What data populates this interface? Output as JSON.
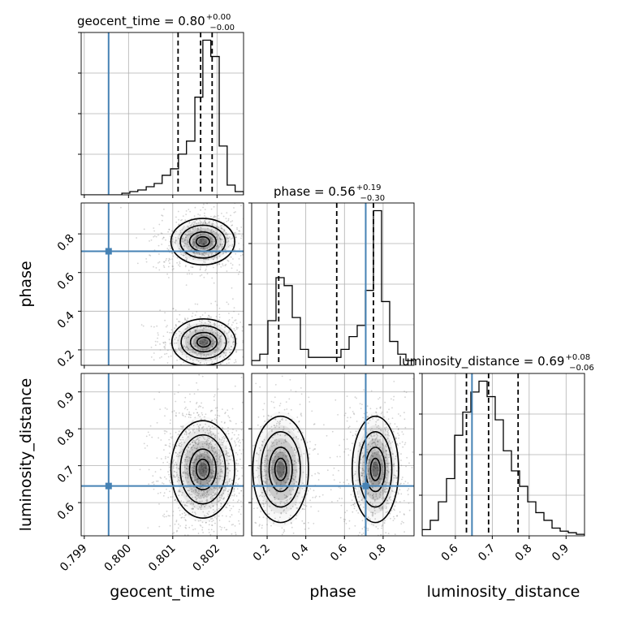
{
  "chart_data": {
    "type": "corner",
    "parameters": [
      "geocent_time",
      "phase",
      "luminosity_distance"
    ],
    "truths": {
      "geocent_time": 0.79955,
      "phase": 0.71,
      "luminosity_distance": 0.645
    },
    "colors": {
      "truth": "#4682b4",
      "hist": "#000000",
      "grid": "#b0b0b0",
      "points": "#808080"
    },
    "titles": {
      "geocent_time": {
        "name": "geocent_time",
        "value": "0.80",
        "plus": "+0.00",
        "minus": "−0.00"
      },
      "phase": {
        "name": "phase",
        "value": "0.56",
        "plus": "+0.19",
        "minus": "−0.30"
      },
      "luminosity_distance": {
        "name": "luminosity_distance",
        "value": "0.69",
        "plus": "+0.08",
        "minus": "−0.06"
      }
    },
    "axes": {
      "geocent_time": {
        "lim": [
          0.79893,
          0.8026
        ],
        "ticks": [
          0.799,
          0.8,
          0.801,
          0.802
        ],
        "tick_labels": [
          "0.799",
          "0.800",
          "0.801",
          "0.802"
        ],
        "label": "geocent_time"
      },
      "phase": {
        "lim": [
          0.12,
          0.96
        ],
        "ticks": [
          0.2,
          0.4,
          0.6,
          0.8
        ],
        "tick_labels": [
          "0.2",
          "0.4",
          "0.6",
          "0.8"
        ],
        "label": "phase"
      },
      "luminosity_distance": {
        "lim": [
          0.51,
          0.95
        ],
        "ticks": [
          0.6,
          0.7,
          0.8,
          0.9
        ],
        "tick_labels": [
          "0.6",
          "0.7",
          "0.8",
          "0.9"
        ],
        "label": "luminosity_distance"
      }
    },
    "histograms": {
      "geocent_time": {
        "edges": [
          0.79893,
          0.79911,
          0.7993,
          0.79948,
          0.79966,
          0.79985,
          0.80003,
          0.80021,
          0.8004,
          0.80058,
          0.80076,
          0.80095,
          0.80113,
          0.80131,
          0.8015,
          0.80168,
          0.80186,
          0.80205,
          0.80223,
          0.80241,
          0.8026
        ],
        "counts": [
          0,
          0,
          0,
          0,
          0,
          1,
          2,
          3,
          5,
          7,
          12,
          16,
          25,
          33,
          60,
          95,
          85,
          30,
          6,
          2
        ],
        "quantiles": [
          0.80112,
          0.80163,
          0.80189
        ],
        "ymax": 95
      },
      "phase": {
        "edges": [
          0.12,
          0.162,
          0.204,
          0.246,
          0.288,
          0.33,
          0.372,
          0.414,
          0.456,
          0.498,
          0.54,
          0.582,
          0.624,
          0.666,
          0.708,
          0.75,
          0.792,
          0.834,
          0.876,
          0.918,
          0.96
        ],
        "counts": [
          3,
          7,
          28,
          55,
          50,
          30,
          10,
          5,
          5,
          5,
          5,
          10,
          18,
          25,
          47,
          97,
          40,
          15,
          7,
          3
        ],
        "quantiles": [
          0.26,
          0.56,
          0.75
        ],
        "ymax": 97
      },
      "luminosity_distance": {
        "edges": [
          0.51,
          0.532,
          0.554,
          0.576,
          0.598,
          0.62,
          0.642,
          0.664,
          0.686,
          0.708,
          0.73,
          0.752,
          0.774,
          0.796,
          0.818,
          0.84,
          0.862,
          0.884,
          0.906,
          0.928,
          0.95
        ],
        "counts": [
          4,
          10,
          22,
          37,
          65,
          80,
          93,
          100,
          90,
          75,
          55,
          42,
          32,
          22,
          15,
          10,
          5,
          3,
          2,
          1
        ],
        "quantiles": [
          0.63,
          0.69,
          0.77
        ],
        "ymax": 100
      }
    },
    "density_modes": {
      "phase_vs_geocent_time": [
        {
          "x": 0.80168,
          "y": 0.76,
          "sx": 0.0003,
          "sy": 0.05,
          "w": 0.55
        },
        {
          "x": 0.8017,
          "y": 0.24,
          "sx": 0.0003,
          "sy": 0.05,
          "w": 0.45
        }
      ],
      "luminosity_distance_vs_geocent_time": [
        {
          "x": 0.80168,
          "y": 0.69,
          "sx": 0.0003,
          "sy": 0.055,
          "w": 1.0
        }
      ],
      "luminosity_distance_vs_phase": [
        {
          "x": 0.27,
          "y": 0.69,
          "sx": 0.06,
          "sy": 0.06,
          "w": 0.45
        },
        {
          "x": 0.76,
          "y": 0.69,
          "sx": 0.05,
          "sy": 0.06,
          "w": 0.55
        }
      ]
    },
    "grid": true
  }
}
